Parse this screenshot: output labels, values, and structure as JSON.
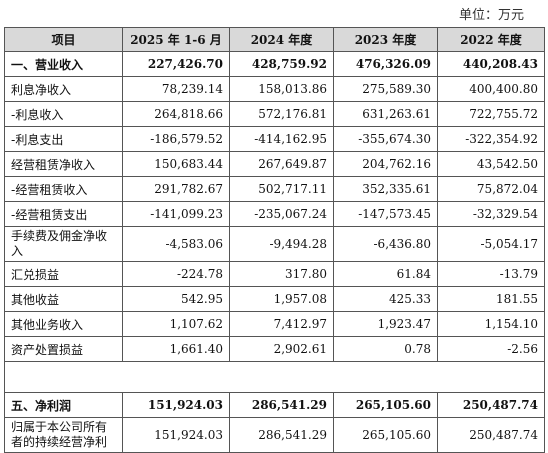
{
  "unit": "单位：万元",
  "header": [
    "项目",
    "2025 年 1-6 月",
    "2024 年度",
    "2023 年度",
    "2022 年度"
  ],
  "rows": [
    {
      "label": "一、营业收入",
      "v": [
        "227,426.70",
        "428,759.92",
        "476,326.09",
        "440,208.43"
      ],
      "bold": true
    },
    {
      "label": "利息净收入",
      "v": [
        "78,239.14",
        "158,013.86",
        "275,589.30",
        "400,400.80"
      ]
    },
    {
      "label": "-利息收入",
      "v": [
        "264,818.66",
        "572,176.81",
        "631,263.61",
        "722,755.72"
      ]
    },
    {
      "label": "-利息支出",
      "v": [
        "-186,579.52",
        "-414,162.95",
        "-355,674.30",
        "-322,354.92"
      ]
    },
    {
      "label": "经营租赁净收入",
      "v": [
        "150,683.44",
        "267,649.87",
        "204,762.16",
        "43,542.50"
      ]
    },
    {
      "label": "-经营租赁收入",
      "v": [
        "291,782.67",
        "502,717.11",
        "352,335.61",
        "75,872.04"
      ]
    },
    {
      "label": "-经营租赁支出",
      "v": [
        "-141,099.23",
        "-235,067.24",
        "-147,573.45",
        "-32,329.54"
      ]
    },
    {
      "label": "手续费及佣金净收入",
      "v": [
        "-4,583.06",
        "-9,494.28",
        "-6,436.80",
        "-5,054.17"
      ],
      "tall": true
    },
    {
      "label": "汇兑损益",
      "v": [
        "-224.78",
        "317.80",
        "61.84",
        "-13.79"
      ]
    },
    {
      "label": "其他收益",
      "v": [
        "542.95",
        "1,957.08",
        "425.33",
        "181.55"
      ]
    },
    {
      "label": "其他业务收入",
      "v": [
        "1,107.62",
        "7,412.97",
        "1,923.47",
        "1,154.10"
      ]
    },
    {
      "label": "资产处置损益",
      "v": [
        "1,661.40",
        "2,902.61",
        "0.78",
        "-2.56"
      ]
    },
    {
      "gap": true
    },
    {
      "label": "五、净利润",
      "v": [
        "151,924.03",
        "286,541.29",
        "265,105.60",
        "250,487.74"
      ],
      "bold": true
    },
    {
      "label": "归属于本公司所有者的持续经营净利",
      "v": [
        "151,924.03",
        "286,541.29",
        "265,105.60",
        "250,487.74"
      ],
      "tall": true
    }
  ]
}
